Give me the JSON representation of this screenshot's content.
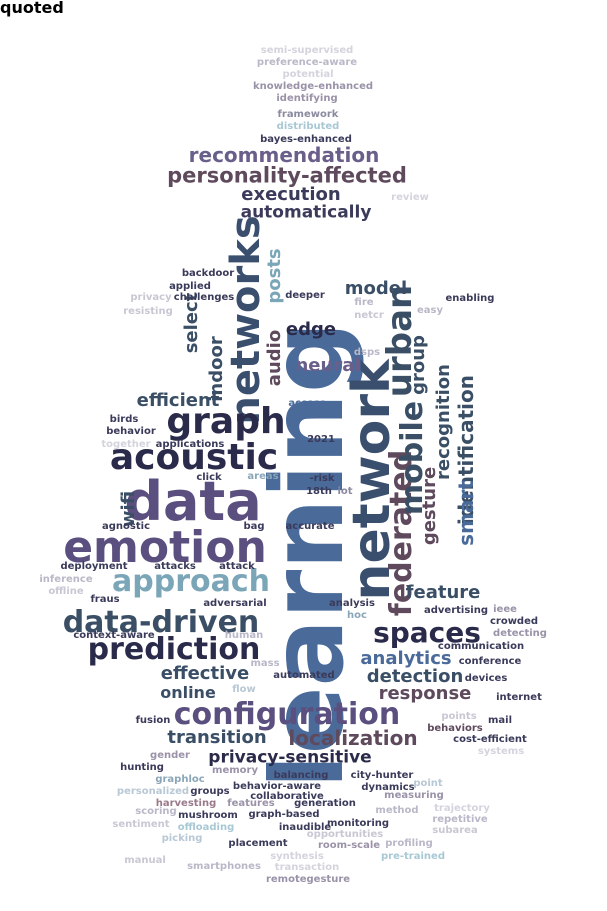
{
  "palette": {
    "slate_blue": "#4a6a9a",
    "deep_navy": "#2a2a4a",
    "purple": "#5a4f7e",
    "plum": "#5e4a5c",
    "steel": "#3a4f66",
    "teal": "#7aa6b8",
    "mauve": "#8a7f9a",
    "faint": "#d4d4de"
  },
  "words": [
    {
      "text": "learning",
      "color": "#4a6a9a",
      "vertical": true
    },
    {
      "text": "network",
      "color": "#3a4f6e",
      "vertical": true
    },
    {
      "text": "data",
      "color": "#5a4f7e",
      "vertical": false
    },
    {
      "text": "emotion",
      "color": "#5a4f7e",
      "vertical": false
    },
    {
      "text": "federated",
      "color": "#5e4a5c",
      "vertical": true
    },
    {
      "text": "urban",
      "color": "#3a4f66",
      "vertical": true
    },
    {
      "text": "mobile",
      "color": "#3a4f66",
      "vertical": true
    },
    {
      "text": "networks",
      "color": "#3a4f6e",
      "vertical": true
    },
    {
      "text": "acoustic",
      "color": "#2a2a4a",
      "vertical": false
    },
    {
      "text": "graph",
      "color": "#2a2a4a",
      "vertical": false
    },
    {
      "text": "approach",
      "color": "#7aa6b8",
      "vertical": false
    },
    {
      "text": "data-driven",
      "color": "#3a4f66",
      "vertical": false
    },
    {
      "text": "prediction",
      "color": "#2a2a4a",
      "vertical": false
    },
    {
      "text": "spaces",
      "color": "#2a2a4a",
      "vertical": false
    },
    {
      "text": "configuration",
      "color": "#5a4f7e",
      "vertical": false
    },
    {
      "text": "recommendation",
      "color": "#6a5f8a",
      "vertical": false
    },
    {
      "text": "personality-affected",
      "color": "#5e4a5c",
      "vertical": false
    },
    {
      "text": "execution",
      "color": "#3a3a5a",
      "vertical": false
    },
    {
      "text": "automatically",
      "color": "#3a3a5a",
      "vertical": false
    },
    {
      "text": "group",
      "color": "#3a4f66",
      "vertical": true
    },
    {
      "text": "recognition",
      "color": "#3a4f66",
      "vertical": true
    },
    {
      "text": "gesture",
      "color": "#5e4a5c",
      "vertical": true
    },
    {
      "text": "identification",
      "color": "#3a4f66",
      "vertical": true
    },
    {
      "text": "smart",
      "color": "#4a6a9a",
      "vertical": true
    },
    {
      "text": "feature",
      "color": "#3a4f66",
      "vertical": false
    },
    {
      "text": "analytics",
      "color": "#4a6a9a",
      "vertical": false
    },
    {
      "text": "detection",
      "color": "#3a4f66",
      "vertical": false
    },
    {
      "text": "response",
      "color": "#5e4a5c",
      "vertical": false
    },
    {
      "text": "localization",
      "color": "#5e4a5c",
      "vertical": false
    },
    {
      "text": "privacy-sensitive",
      "color": "#2a2a4a",
      "vertical": false
    },
    {
      "text": "transition",
      "color": "#3a4f66",
      "vertical": false
    },
    {
      "text": "effective",
      "color": "#3a4f66",
      "vertical": false
    },
    {
      "text": "online",
      "color": "#3a4f66",
      "vertical": false
    },
    {
      "text": "efficient",
      "color": "#3a4f66",
      "vertical": false
    },
    {
      "text": "indoor",
      "color": "#3a4f66",
      "vertical": true
    },
    {
      "text": "select",
      "color": "#3a4f66",
      "vertical": true
    },
    {
      "text": "wifi",
      "color": "#3a4f66",
      "vertical": true
    },
    {
      "text": "edge",
      "color": "#2a2a4a",
      "vertical": false
    },
    {
      "text": "model",
      "color": "#3a4f66",
      "vertical": false
    },
    {
      "text": "neural",
      "color": "#6a5f8a",
      "vertical": false
    },
    {
      "text": "audio",
      "color": "#5e4a5c",
      "vertical": true
    },
    {
      "text": "posts",
      "color": "#7aa6b8",
      "vertical": true
    },
    {
      "text": "2021",
      "color": "#3a3a5a",
      "vertical": false
    },
    {
      "text": "access",
      "color": "#4a6a9a",
      "vertical": false
    },
    {
      "text": "18th",
      "color": "#3a3a5a",
      "vertical": false
    },
    {
      "text": "-risk",
      "color": "#3a3a5a",
      "vertical": false
    },
    {
      "text": "iot",
      "color": "#8a8aa0",
      "vertical": false
    },
    {
      "text": "areas",
      "color": "#8aa6b8",
      "vertical": false
    },
    {
      "text": "click",
      "color": "#3a3a5a",
      "vertical": false
    },
    {
      "text": "semi-supervised",
      "color": "#d4d4de",
      "vertical": false
    },
    {
      "text": "preference-aware",
      "color": "#b8b8c8",
      "vertical": false
    },
    {
      "text": "potential",
      "color": "#d4d4de",
      "vertical": false
    },
    {
      "text": "knowledge-enhanced",
      "color": "#9a92a8",
      "vertical": false
    },
    {
      "text": "identifying",
      "color": "#9a92a8",
      "vertical": false
    },
    {
      "text": "framework",
      "color": "#8a8aa0",
      "vertical": false
    },
    {
      "text": "distributed",
      "color": "#a8c8d4",
      "vertical": false
    },
    {
      "text": "bayes-enhanced",
      "color": "#3a3a5a",
      "vertical": false
    },
    {
      "text": "agnostic",
      "color": "#3a3a5a",
      "vertical": false
    },
    {
      "text": "bag",
      "color": "#3a3a5a",
      "vertical": false
    },
    {
      "text": "accurate",
      "color": "#3a3a5a",
      "vertical": false
    },
    {
      "text": "deployment",
      "color": "#3a3a5a",
      "vertical": false
    },
    {
      "text": "attacks",
      "color": "#3a3a5a",
      "vertical": false
    },
    {
      "text": "attack",
      "color": "#3a3a5a",
      "vertical": false
    },
    {
      "text": "inference",
      "color": "#b8b8c8",
      "vertical": false
    },
    {
      "text": "offline",
      "color": "#c8c8d4",
      "vertical": false
    },
    {
      "text": "fraus",
      "color": "#3a3a5a",
      "vertical": false
    },
    {
      "text": "adversarial",
      "color": "#3a3a5a",
      "vertical": false
    },
    {
      "text": "analysis",
      "color": "#3a3a5a",
      "vertical": false
    },
    {
      "text": "hoc",
      "color": "#8aa6b8",
      "vertical": false
    },
    {
      "text": "advertising",
      "color": "#3a3a5a",
      "vertical": false
    },
    {
      "text": "ieee",
      "color": "#9a92a8",
      "vertical": false
    },
    {
      "text": "crowded",
      "color": "#3a3a5a",
      "vertical": false
    },
    {
      "text": "detecting",
      "color": "#9a92a8",
      "vertical": false
    },
    {
      "text": "communication",
      "color": "#3a3a5a",
      "vertical": false
    },
    {
      "text": "conference",
      "color": "#3a3a5a",
      "vertical": false
    },
    {
      "text": "devices",
      "color": "#3a3a5a",
      "vertical": false
    },
    {
      "text": "mail",
      "color": "#3a3a5a",
      "vertical": false
    },
    {
      "text": "context-aware",
      "color": "#3a3a5a",
      "vertical": false
    },
    {
      "text": "human",
      "color": "#b8b8c8",
      "vertical": false
    },
    {
      "text": "mass",
      "color": "#b8b8c8",
      "vertical": false
    },
    {
      "text": "automated",
      "color": "#3a3a5a",
      "vertical": false
    },
    {
      "text": "flow",
      "color": "#b8c8d4",
      "vertical": false
    },
    {
      "text": "fusion",
      "color": "#3a3a5a",
      "vertical": false
    },
    {
      "text": "gender",
      "color": "#9a92a8",
      "vertical": false
    },
    {
      "text": "hunting",
      "color": "#3a3a5a",
      "vertical": false
    },
    {
      "text": "graphloc",
      "color": "#8aa6b8",
      "vertical": false
    },
    {
      "text": "memory",
      "color": "#9a92a8",
      "vertical": false
    },
    {
      "text": "balancing",
      "color": "#3a3a5a",
      "vertical": false
    },
    {
      "text": "behavior-aware",
      "color": "#3a3a5a",
      "vertical": false
    },
    {
      "text": "city-hunter",
      "color": "#3a3a5a",
      "vertical": false
    },
    {
      "text": "dynamics",
      "color": "#3a3a5a",
      "vertical": false
    },
    {
      "text": "collaborative",
      "color": "#3a3a5a",
      "vertical": false
    },
    {
      "text": "personalized",
      "color": "#b8c8d4",
      "vertical": false
    },
    {
      "text": "groups",
      "color": "#3a3a5a",
      "vertical": false
    },
    {
      "text": "harvesting",
      "color": "#9a7a8a",
      "vertical": false
    },
    {
      "text": "features",
      "color": "#9a92a8",
      "vertical": false
    },
    {
      "text": "generation",
      "color": "#3a3a5a",
      "vertical": false
    },
    {
      "text": "measuring",
      "color": "#9a92a8",
      "vertical": false
    },
    {
      "text": "point",
      "color": "#b8c8d4",
      "vertical": false
    },
    {
      "text": "method",
      "color": "#b8b8c8",
      "vertical": false
    },
    {
      "text": "scoring",
      "color": "#b8b8c8",
      "vertical": false
    },
    {
      "text": "mushroom",
      "color": "#3a3a5a",
      "vertical": false
    },
    {
      "text": "graph-based",
      "color": "#3a3a5a",
      "vertical": false
    },
    {
      "text": "monitoring",
      "color": "#3a3a5a",
      "vertical": false
    },
    {
      "text": "sentiment",
      "color": "#c8c8d4",
      "vertical": false
    },
    {
      "text": "offloading",
      "color": "#a8c8d4",
      "vertical": false
    },
    {
      "text": "inaudible",
      "color": "#3a3a5a",
      "vertical": false
    },
    {
      "text": "opportunities",
      "color": "#c8c8d4",
      "vertical": false
    },
    {
      "text": "profiling",
      "color": "#b8b8c8",
      "vertical": false
    },
    {
      "text": "picking",
      "color": "#b8c8d4",
      "vertical": false
    },
    {
      "text": "placement",
      "color": "#3a3a5a",
      "vertical": false
    },
    {
      "text": "room-scale",
      "color": "#9a92a8",
      "vertical": false
    },
    {
      "text": "synthesis",
      "color": "#d4d4de",
      "vertical": false
    },
    {
      "text": "pre-trained",
      "color": "#a8c8d4",
      "vertical": false
    },
    {
      "text": "smartphones",
      "color": "#b8b8c8",
      "vertical": false
    },
    {
      "text": "transaction",
      "color": "#d4d4de",
      "vertical": false
    },
    {
      "text": "remotegesture",
      "color": "#9a92a8",
      "vertical": false
    },
    {
      "text": "trajectory",
      "color": "#d4d4de",
      "vertical": false
    },
    {
      "text": "repetitive",
      "color": "#b8b8c8",
      "vertical": false
    },
    {
      "text": "subarea",
      "color": "#c8c8d4",
      "vertical": false
    },
    {
      "text": "systems",
      "color": "#d4d4de",
      "vertical": false
    },
    {
      "text": "points",
      "color": "#c8c8d4",
      "vertical": false
    },
    {
      "text": "behaviors",
      "color": "#5e4a5c",
      "vertical": false
    },
    {
      "text": "cost-efficient",
      "color": "#3a3a5a",
      "vertical": false
    },
    {
      "text": "internet",
      "color": "#3a3a5a",
      "vertical": false
    },
    {
      "text": "manual",
      "color": "#c8c8d4",
      "vertical": false
    },
    {
      "text": "together",
      "color": "#d4d4de",
      "vertical": false
    },
    {
      "text": "applications",
      "color": "#3a3a5a",
      "vertical": false
    },
    {
      "text": "birds",
      "color": "#3a3a5a",
      "vertical": false
    },
    {
      "text": "behavior",
      "color": "#3a3a5a",
      "vertical": false
    },
    {
      "text": "applied",
      "color": "#3a3a5a",
      "vertical": false
    },
    {
      "text": "challenges",
      "color": "#3a3a5a",
      "vertical": false
    },
    {
      "text": "backdoor",
      "color": "#3a3a5a",
      "vertical": false
    },
    {
      "text": "deeper",
      "color": "#3a3a5a",
      "vertical": false
    },
    {
      "text": "fire",
      "color": "#b8b8c8",
      "vertical": false
    },
    {
      "text": "netcr",
      "color": "#c8c8d4",
      "vertical": false
    },
    {
      "text": "dsps",
      "color": "#b8b8c8",
      "vertical": false
    },
    {
      "text": "easy",
      "color": "#b8b8c8",
      "vertical": false
    },
    {
      "text": "enabling",
      "color": "#3a3a5a",
      "vertical": false
    },
    {
      "text": "resisting",
      "color": "#c8c8d4",
      "vertical": false
    },
    {
      "text": "privacy",
      "color": "#c8c8d4",
      "vertical": false
    },
    {
      "text": "review",
      "color": "#d4d4de",
      "vertical": false
    },
    {
      "text": "quoted",
      "color": "#d4d4de",
      "vertical": false
    }
  ]
}
